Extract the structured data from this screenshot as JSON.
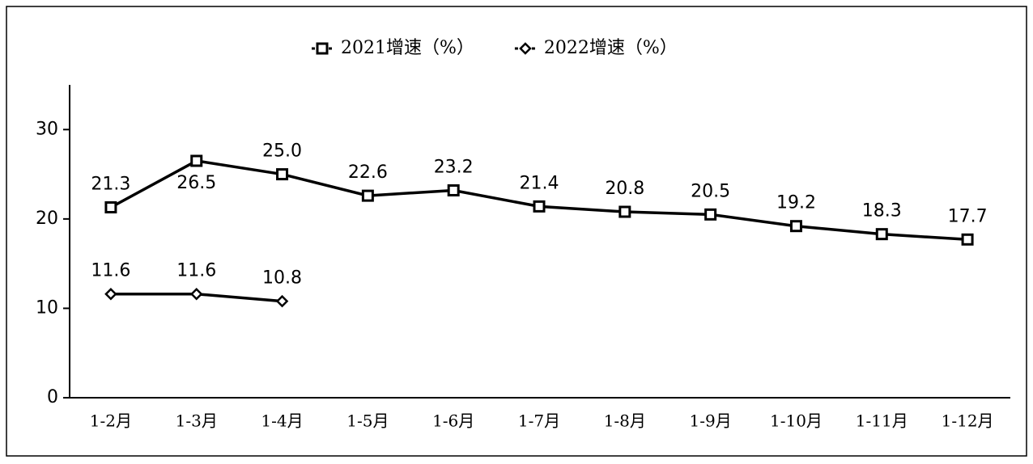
{
  "chart_data": {
    "type": "line",
    "categories": [
      "1-2月",
      "1-3月",
      "1-4月",
      "1-5月",
      "1-6月",
      "1-7月",
      "1-8月",
      "1-9月",
      "1-10月",
      "1-11月",
      "1-12月"
    ],
    "series": [
      {
        "name": "2021增速（%）",
        "color": "#000000",
        "marker": "square",
        "values": [
          21.3,
          26.5,
          25.0,
          22.6,
          23.2,
          21.4,
          20.8,
          20.5,
          19.2,
          18.3,
          17.7
        ],
        "value_labels": [
          "21.3",
          "26.5",
          "25.0",
          "22.6",
          "23.2",
          "21.4",
          "20.8",
          "20.5",
          "19.2",
          "18.3",
          "17.7"
        ]
      },
      {
        "name": "2022增速（%）",
        "color": "#000000",
        "marker": "diamond",
        "values": [
          11.6,
          11.6,
          10.8,
          null,
          null,
          null,
          null,
          null,
          null,
          null,
          null
        ],
        "value_labels": [
          "11.6",
          "11.6",
          "10.8",
          null,
          null,
          null,
          null,
          null,
          null,
          null,
          null
        ]
      }
    ],
    "ylim": [
      0,
      35
    ],
    "yticks": [
      0,
      10,
      20,
      30
    ],
    "grid": false,
    "legend": "top"
  }
}
